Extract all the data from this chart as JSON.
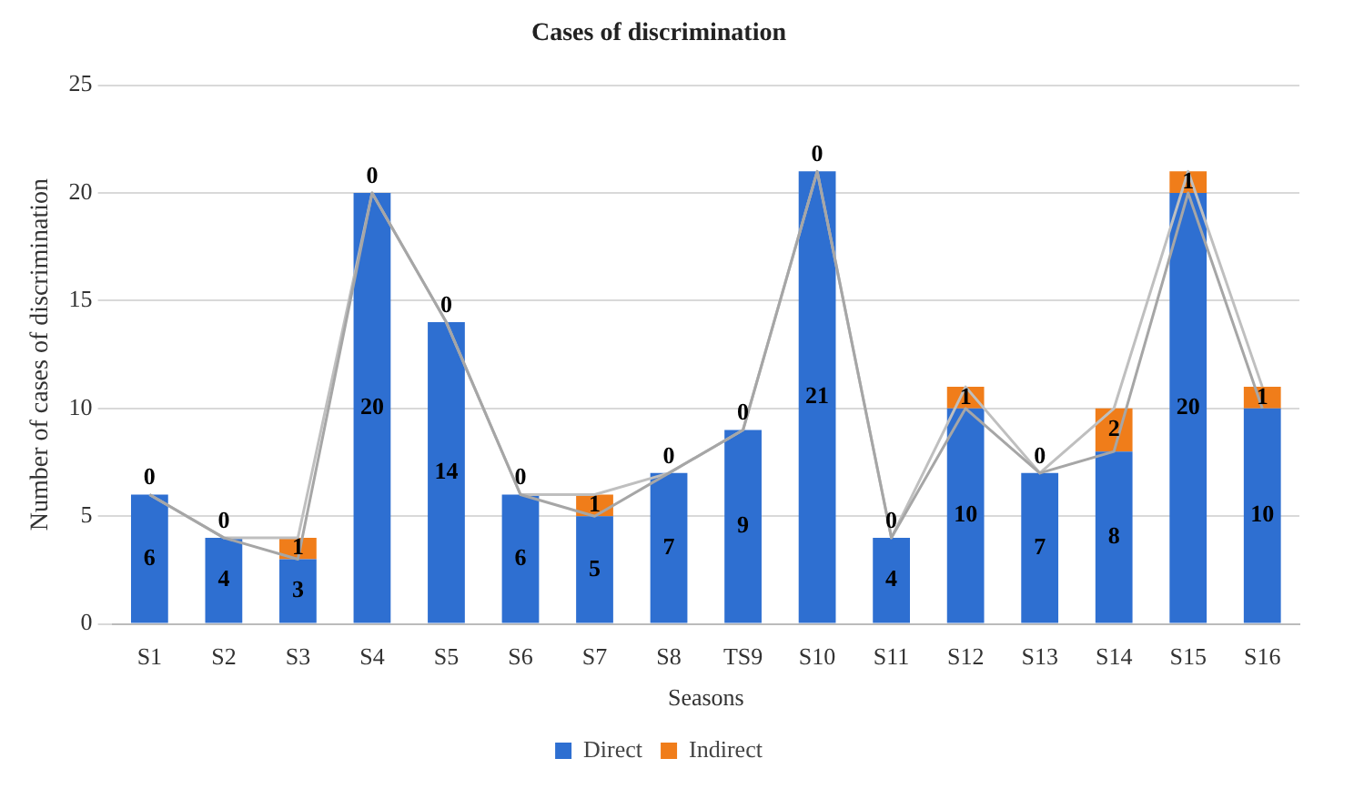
{
  "chart_data": {
    "type": "bar",
    "title": "Cases of discrimination",
    "xlabel": "Seasons",
    "ylabel": "Number of cases of discrimination",
    "categories": [
      "S1",
      "S2",
      "S3",
      "S4",
      "S5",
      "S6",
      "S7",
      "S8",
      "TS9",
      "S10",
      "S11",
      "S12",
      "S13",
      "S14",
      "S15",
      "S16"
    ],
    "stacked": true,
    "ylim": [
      0,
      25
    ],
    "yticks": [
      0,
      5,
      10,
      15,
      20,
      25
    ],
    "grid": "y",
    "legend": "bottom",
    "series": [
      {
        "name": "Direct",
        "color": "#2e6fd1",
        "values": [
          6,
          4,
          3,
          20,
          14,
          6,
          5,
          7,
          9,
          21,
          4,
          10,
          7,
          8,
          20,
          10
        ],
        "value_labels": [
          "6",
          "4",
          "3",
          "20",
          "14",
          "6",
          "5",
          "7",
          "9",
          "21",
          "4",
          "10",
          "7",
          "8",
          "20",
          "10"
        ]
      },
      {
        "name": "Indirect",
        "color": "#f07d1a",
        "values": [
          0,
          0,
          1,
          0,
          0,
          0,
          1,
          0,
          0,
          0,
          0,
          1,
          0,
          2,
          1,
          1
        ],
        "value_labels": [
          "0",
          "0",
          "1",
          "0",
          "0",
          "0",
          "1",
          "0",
          "0",
          "0",
          "0",
          "1",
          "0",
          "2",
          "1",
          "1"
        ]
      },
      {
        "type": "line",
        "color": "#a6a6a6",
        "values": [
          6,
          4,
          3,
          20,
          14,
          6,
          5,
          7,
          9,
          21,
          4,
          10,
          7,
          8,
          20,
          10
        ]
      },
      {
        "type": "line",
        "color": "#bfbfbf",
        "values": [
          6,
          4,
          4,
          20,
          14,
          6,
          6,
          7,
          9,
          21,
          4,
          11,
          7,
          10,
          21,
          11
        ]
      }
    ]
  }
}
